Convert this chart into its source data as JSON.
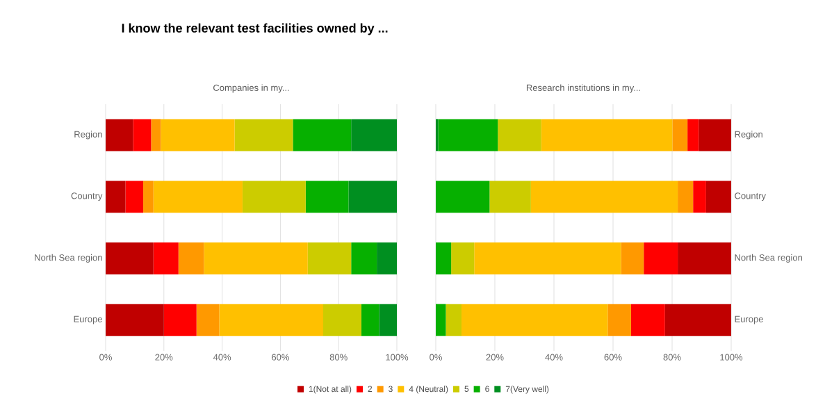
{
  "chart_data": [
    {
      "type": "bar",
      "orientation": "horizontal",
      "stacked": true,
      "title": "Companies in my...",
      "annotations": [
        "I know the relevant test facilities owned by ..."
      ],
      "categories": [
        "Region",
        "Country",
        "North Sea region",
        "Europe"
      ],
      "series": [
        {
          "name": "1(Not at all)",
          "color": "#c00000",
          "values": [
            9.4,
            6.8,
            16.4,
            20.0
          ]
        },
        {
          "name": "2",
          "color": "#ff0000",
          "values": [
            6.2,
            6.1,
            8.6,
            11.2
          ]
        },
        {
          "name": "3",
          "color": "#ff9900",
          "values": [
            3.4,
            3.5,
            8.8,
            7.8
          ]
        },
        {
          "name": "4 (Neutral)",
          "color": "#ffc000",
          "values": [
            25.3,
            30.6,
            35.6,
            35.7
          ]
        },
        {
          "name": "5",
          "color": "#cccc00",
          "values": [
            20.0,
            21.7,
            14.9,
            13.1
          ]
        },
        {
          "name": "6",
          "color": "#06b000",
          "values": [
            20.0,
            14.7,
            8.8,
            6.1
          ]
        },
        {
          "name": "7(Very well)",
          "color": "#008f20",
          "values": [
            15.7,
            16.6,
            6.9,
            6.1
          ]
        }
      ],
      "xlim": [
        0,
        100
      ],
      "xticks": [
        {
          "value": 0,
          "label": "0%"
        },
        {
          "value": 20,
          "label": "20%"
        },
        {
          "value": 40,
          "label": "40%"
        },
        {
          "value": 60,
          "label": "60%"
        },
        {
          "value": 80,
          "label": "80%"
        },
        {
          "value": 100,
          "label": "100%"
        }
      ],
      "grid": "x",
      "legend": "bottom"
    },
    {
      "type": "bar",
      "orientation": "horizontal",
      "stacked": true,
      "title": "Research institutions in my...",
      "categories": [
        "Region",
        "Country",
        "North Sea region",
        "Europe"
      ],
      "series": [
        {
          "color": "#008f20",
          "values": [
            0.8,
            0,
            0,
            0
          ]
        },
        {
          "color": "#06b000",
          "values": [
            20.2,
            18.2,
            5.2,
            3.4
          ]
        },
        {
          "color": "#cccc00",
          "values": [
            14.7,
            14.0,
            7.8,
            5.3
          ]
        },
        {
          "color": "#ffc000",
          "values": [
            44.4,
            49.7,
            49.7,
            49.5
          ]
        },
        {
          "color": "#ff9900",
          "values": [
            5.1,
            5.2,
            7.7,
            7.9
          ]
        },
        {
          "color": "#ff0000",
          "values": [
            3.8,
            4.4,
            11.5,
            11.5
          ]
        },
        {
          "color": "#c00000",
          "values": [
            11.0,
            8.5,
            18.1,
            22.4
          ]
        }
      ],
      "xlim": [
        0,
        100
      ],
      "xticks": [
        {
          "value": 0,
          "label": "0%"
        },
        {
          "value": 20,
          "label": "20%"
        },
        {
          "value": 40,
          "label": "40%"
        },
        {
          "value": 60,
          "label": "60%"
        },
        {
          "value": 80,
          "label": "80%"
        },
        {
          "value": 100,
          "label": "100%"
        }
      ],
      "grid": "x"
    }
  ]
}
